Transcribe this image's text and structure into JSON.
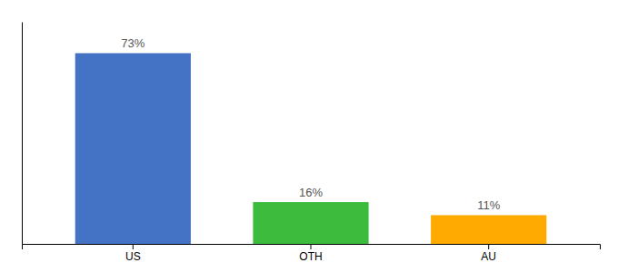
{
  "chart_data": {
    "type": "bar",
    "categories": [
      "US",
      "OTH",
      "AU"
    ],
    "values": [
      73,
      16,
      11
    ],
    "value_labels": [
      "73%",
      "16%",
      "11%"
    ],
    "colors": [
      "#4472c4",
      "#3dbb3d",
      "#ffaa00"
    ],
    "ylim": [
      0,
      85
    ],
    "data_labels": true,
    "tick_labels": "x",
    "grid": false
  }
}
